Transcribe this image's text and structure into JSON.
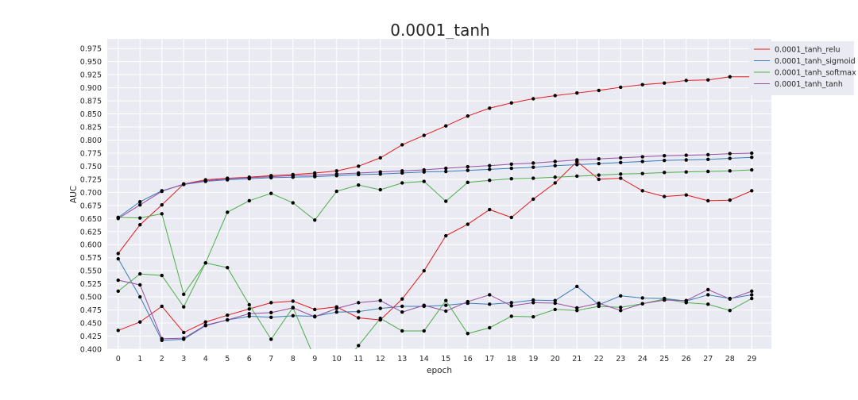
{
  "chart_data": {
    "type": "line",
    "title": "0.0001_tanh",
    "xlabel": "epoch",
    "ylabel": "AUC",
    "xlim": [
      -0.5,
      29.9
    ],
    "ylim": [
      0.4,
      0.9935
    ],
    "yticks": [
      "0.400",
      "0.425",
      "0.450",
      "0.475",
      "0.500",
      "0.525",
      "0.550",
      "0.575",
      "0.600",
      "0.625",
      "0.650",
      "0.675",
      "0.700",
      "0.725",
      "0.750",
      "0.775",
      "0.800",
      "0.825",
      "0.850",
      "0.875",
      "0.900",
      "0.925",
      "0.950",
      "0.975"
    ],
    "x": [
      0,
      1,
      2,
      3,
      4,
      5,
      6,
      7,
      8,
      9,
      10,
      11,
      12,
      13,
      14,
      15,
      16,
      17,
      18,
      19,
      20,
      21,
      22,
      23,
      24,
      25,
      26,
      27,
      28,
      29
    ],
    "grid": true,
    "legend_position": "top-right",
    "series": [
      {
        "name": "0.0001_tanh_relu",
        "color": "#e41a1c",
        "values": [
          0.583,
          0.638,
          0.676,
          0.716,
          0.724,
          0.727,
          0.729,
          0.732,
          0.734,
          0.737,
          0.741,
          0.75,
          0.766,
          0.791,
          0.809,
          0.827,
          0.846,
          0.861,
          0.871,
          0.879,
          0.885,
          0.89,
          0.895,
          0.901,
          0.906,
          0.909,
          0.914,
          0.915,
          0.921,
          0.921
        ]
      },
      {
        "name": "0.0001_tanh_relu",
        "color": "#e41a1c",
        "values": [
          0.436,
          0.452,
          0.482,
          0.432,
          0.452,
          0.465,
          0.477,
          0.489,
          0.492,
          0.476,
          0.481,
          0.46,
          0.456,
          0.496,
          0.55,
          0.617,
          0.639,
          0.667,
          0.652,
          0.687,
          0.718,
          0.759,
          0.725,
          0.727,
          0.703,
          0.692,
          0.695,
          0.684,
          0.685,
          0.703
        ]
      },
      {
        "name": "0.0001_tanh_sigmoid",
        "color": "#377eb8",
        "values": [
          0.652,
          0.682,
          0.703,
          0.715,
          0.721,
          0.724,
          0.726,
          0.728,
          0.729,
          0.73,
          0.732,
          0.734,
          0.735,
          0.737,
          0.739,
          0.74,
          0.742,
          0.744,
          0.746,
          0.748,
          0.751,
          0.753,
          0.755,
          0.757,
          0.759,
          0.761,
          0.762,
          0.763,
          0.765,
          0.767
        ]
      },
      {
        "name": "0.0001_tanh_sigmoid",
        "color": "#377eb8",
        "values": [
          0.573,
          0.5,
          0.417,
          0.419,
          0.445,
          0.456,
          0.463,
          0.461,
          0.464,
          0.463,
          0.471,
          0.472,
          0.478,
          0.482,
          0.482,
          0.484,
          0.488,
          0.486,
          0.489,
          0.494,
          0.493,
          0.52,
          0.485,
          0.502,
          0.498,
          0.497,
          0.492,
          0.504,
          0.497,
          0.504
        ]
      },
      {
        "name": "0.0001_tanh_softmax",
        "color": "#4daf4a",
        "values": [
          0.652,
          0.651,
          0.659,
          0.505,
          0.565,
          0.662,
          0.684,
          0.698,
          0.68,
          0.647,
          0.702,
          0.714,
          0.705,
          0.718,
          0.721,
          0.683,
          0.719,
          0.723,
          0.726,
          0.727,
          0.729,
          0.731,
          0.733,
          0.735,
          0.736,
          0.738,
          0.739,
          0.74,
          0.741,
          0.743
        ]
      },
      {
        "name": "0.0001_tanh_softmax",
        "color": "#4daf4a",
        "values": [
          0.511,
          0.544,
          0.541,
          0.481,
          0.565,
          0.556,
          0.485,
          0.419,
          0.48,
          0.382,
          0.356,
          0.407,
          0.459,
          0.435,
          0.435,
          0.493,
          0.43,
          0.441,
          0.463,
          0.462,
          0.476,
          0.474,
          0.482,
          0.48,
          0.487,
          0.496,
          0.489,
          0.486,
          0.474,
          0.497
        ]
      },
      {
        "name": "0.0001_tanh_tanh",
        "color": "#984ea3",
        "values": [
          0.65,
          0.676,
          0.702,
          0.716,
          0.722,
          0.726,
          0.728,
          0.73,
          0.732,
          0.733,
          0.735,
          0.737,
          0.739,
          0.741,
          0.743,
          0.746,
          0.749,
          0.751,
          0.754,
          0.756,
          0.759,
          0.762,
          0.764,
          0.766,
          0.768,
          0.77,
          0.771,
          0.772,
          0.774,
          0.775
        ]
      },
      {
        "name": "0.0001_tanh_tanh",
        "color": "#984ea3",
        "values": [
          0.532,
          0.523,
          0.42,
          0.421,
          0.446,
          0.456,
          0.468,
          0.47,
          0.479,
          0.462,
          0.478,
          0.489,
          0.493,
          0.471,
          0.484,
          0.473,
          0.491,
          0.504,
          0.483,
          0.489,
          0.488,
          0.479,
          0.488,
          0.474,
          0.487,
          0.494,
          0.493,
          0.514,
          0.496,
          0.511
        ]
      }
    ]
  }
}
